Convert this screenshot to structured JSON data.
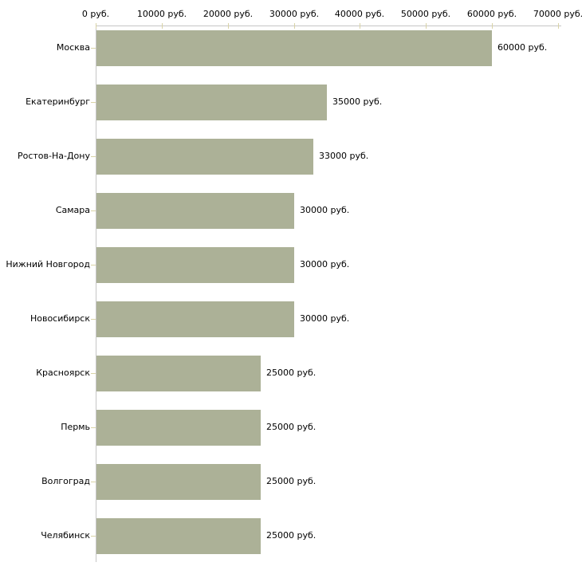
{
  "chart_data": {
    "type": "bar",
    "orientation": "horizontal",
    "title": "",
    "xlabel": "",
    "ylabel": "",
    "categories": [
      "Москва",
      "Екатеринбург",
      "Ростов-На-Дону",
      "Самара",
      "Нижний Новгород",
      "Новосибирск",
      "Красноярск",
      "Пермь",
      "Волгоград",
      "Челябинск"
    ],
    "values": [
      60000,
      35000,
      33000,
      30000,
      30000,
      30000,
      25000,
      25000,
      25000,
      25000
    ],
    "bar_labels": [
      "60000 руб.",
      "35000 руб.",
      "33000 руб.",
      "30000 руб.",
      "30000 руб.",
      "30000 руб.",
      "25000 руб.",
      "25000 руб.",
      "25000 руб.",
      "25000 руб."
    ],
    "x_ticks": [
      0,
      10000,
      20000,
      30000,
      40000,
      50000,
      60000,
      70000
    ],
    "x_tick_labels": [
      "0 руб.",
      "10000 руб.",
      "20000 руб.",
      "30000 руб.",
      "40000 руб.",
      "50000 руб.",
      "60000 руб.",
      "70000 руб."
    ],
    "xlim": [
      0,
      70000
    ],
    "grid": false,
    "legend": false,
    "colors": {
      "bar_fill": "#acb197",
      "axis_line": "#c6c6c6",
      "tick_mark": "#d9d3a6",
      "label_text": "#000000",
      "background": "#ffffff"
    }
  }
}
